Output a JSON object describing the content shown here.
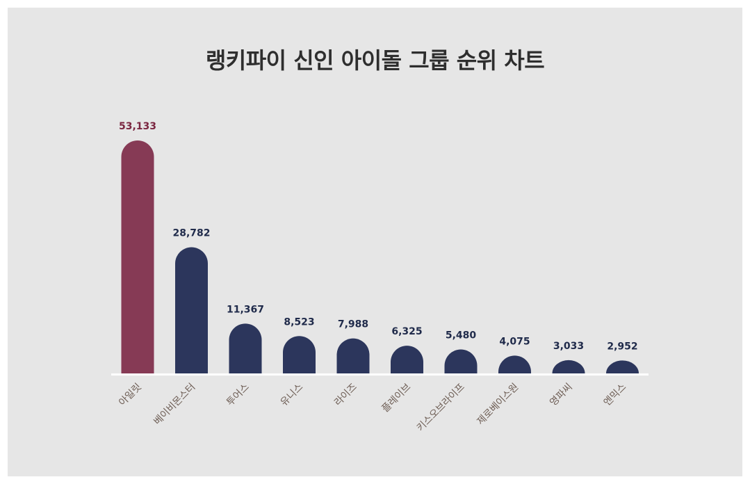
{
  "chart_data": {
    "type": "bar",
    "title": "랭키파이 신인 아이돌 그룹 순위 차트",
    "xlabel": "",
    "ylabel": "",
    "categories": [
      "아일릿",
      "베이비몬스터",
      "투어스",
      "유니스",
      "라이즈",
      "플레이브",
      "키스오브라이프",
      "제로베이스원",
      "영파씨",
      "엔믹스"
    ],
    "values": [
      53133,
      28782,
      11367,
      8523,
      7988,
      6325,
      5480,
      4075,
      3033,
      2952
    ],
    "value_labels": [
      "53,133",
      "28,782",
      "11,367",
      "8,523",
      "7,988",
      "6,325",
      "5,480",
      "4,075",
      "3,033",
      "2,952"
    ],
    "ylim": [
      0,
      53133
    ],
    "grid": false,
    "legend": "none",
    "colors": {
      "highlight": "#863a55",
      "bar": "#2c365c",
      "highlight_label": "#7a2540",
      "value_label": "#1f2a4a",
      "category_label": "#6e5e55",
      "baseline": "#ffffff",
      "background": "#e6e6e6"
    }
  }
}
